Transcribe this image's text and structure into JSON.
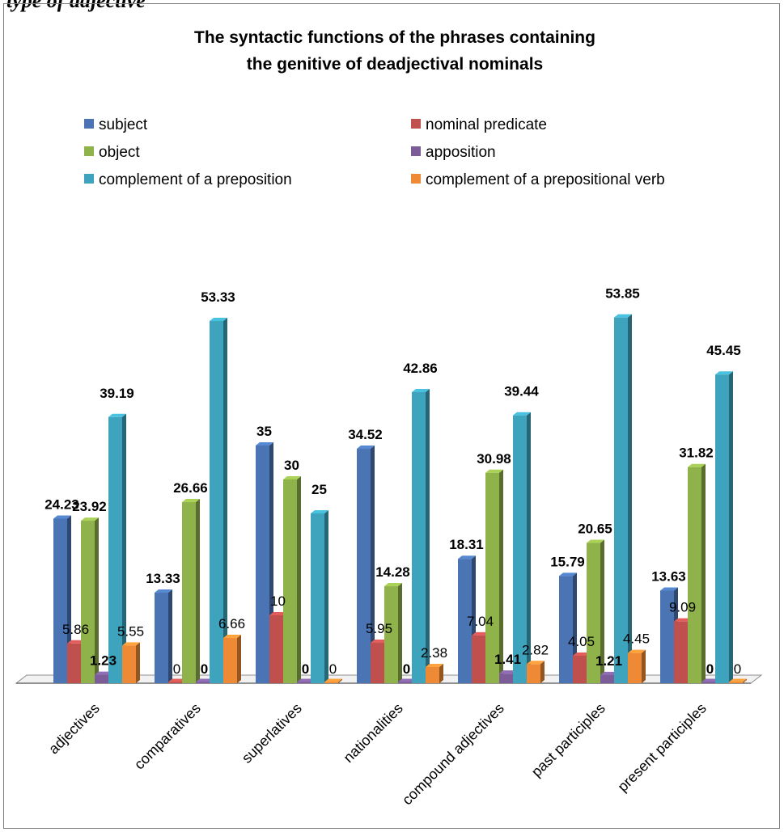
{
  "caption": "type of adjective",
  "chart_data": {
    "type": "bar",
    "title_lines": [
      "The syntactic functions of the phrases containing",
      "the genitive of deadjectival nominals"
    ],
    "categories": [
      "adjectives",
      "comparatives",
      "superlatives",
      "nationalities",
      "compound adjectives",
      "past participles",
      "present participles"
    ],
    "series": [
      {
        "name": "subject",
        "color": "#4a74b3",
        "values": [
          24.23,
          13.33,
          35,
          34.52,
          18.31,
          15.79,
          13.63
        ],
        "labels": [
          "24.23",
          "13.33",
          "35",
          "34.52",
          "18.31",
          "15.79",
          "13.63"
        ]
      },
      {
        "name": "nominal predicate",
        "color": "#c0504d",
        "values": [
          5.86,
          0,
          10,
          5.95,
          7.04,
          4.05,
          9.09
        ],
        "labels": [
          "5.86",
          "0",
          "10",
          "5.95",
          "7.04",
          "4.05",
          "9.09"
        ]
      },
      {
        "name": "object",
        "color": "#8fb24a",
        "values": [
          23.92,
          26.66,
          30,
          14.28,
          30.98,
          20.65,
          31.82
        ],
        "labels": [
          "23.92",
          "26.66",
          "30",
          "14.28",
          "30.98",
          "20.65",
          "31.82"
        ]
      },
      {
        "name": "apposition",
        "color": "#7b5c99",
        "values": [
          1.23,
          0,
          0,
          0,
          1.41,
          1.21,
          0
        ],
        "labels": [
          "1.23",
          "0",
          "0",
          "0",
          "1.41",
          "1.21",
          "0"
        ]
      },
      {
        "name": "complement of a preposition",
        "color": "#3ea4be",
        "values": [
          39.19,
          53.33,
          25,
          42.86,
          39.44,
          53.85,
          45.45
        ],
        "labels": [
          "39.19",
          "53.33",
          "25",
          "42.86",
          "39.44",
          "53.85",
          "45.45"
        ]
      },
      {
        "name": "complement of a prepositional verb",
        "color": "#ee8a35",
        "values": [
          5.55,
          6.66,
          0,
          2.38,
          2.82,
          4.45,
          0
        ],
        "labels": [
          "5.55",
          "6.66",
          "0",
          "2.38",
          "2.82",
          "4.45",
          "0"
        ]
      }
    ],
    "legend_position": "top",
    "grid": false,
    "ylim": [
      0,
      60
    ]
  }
}
